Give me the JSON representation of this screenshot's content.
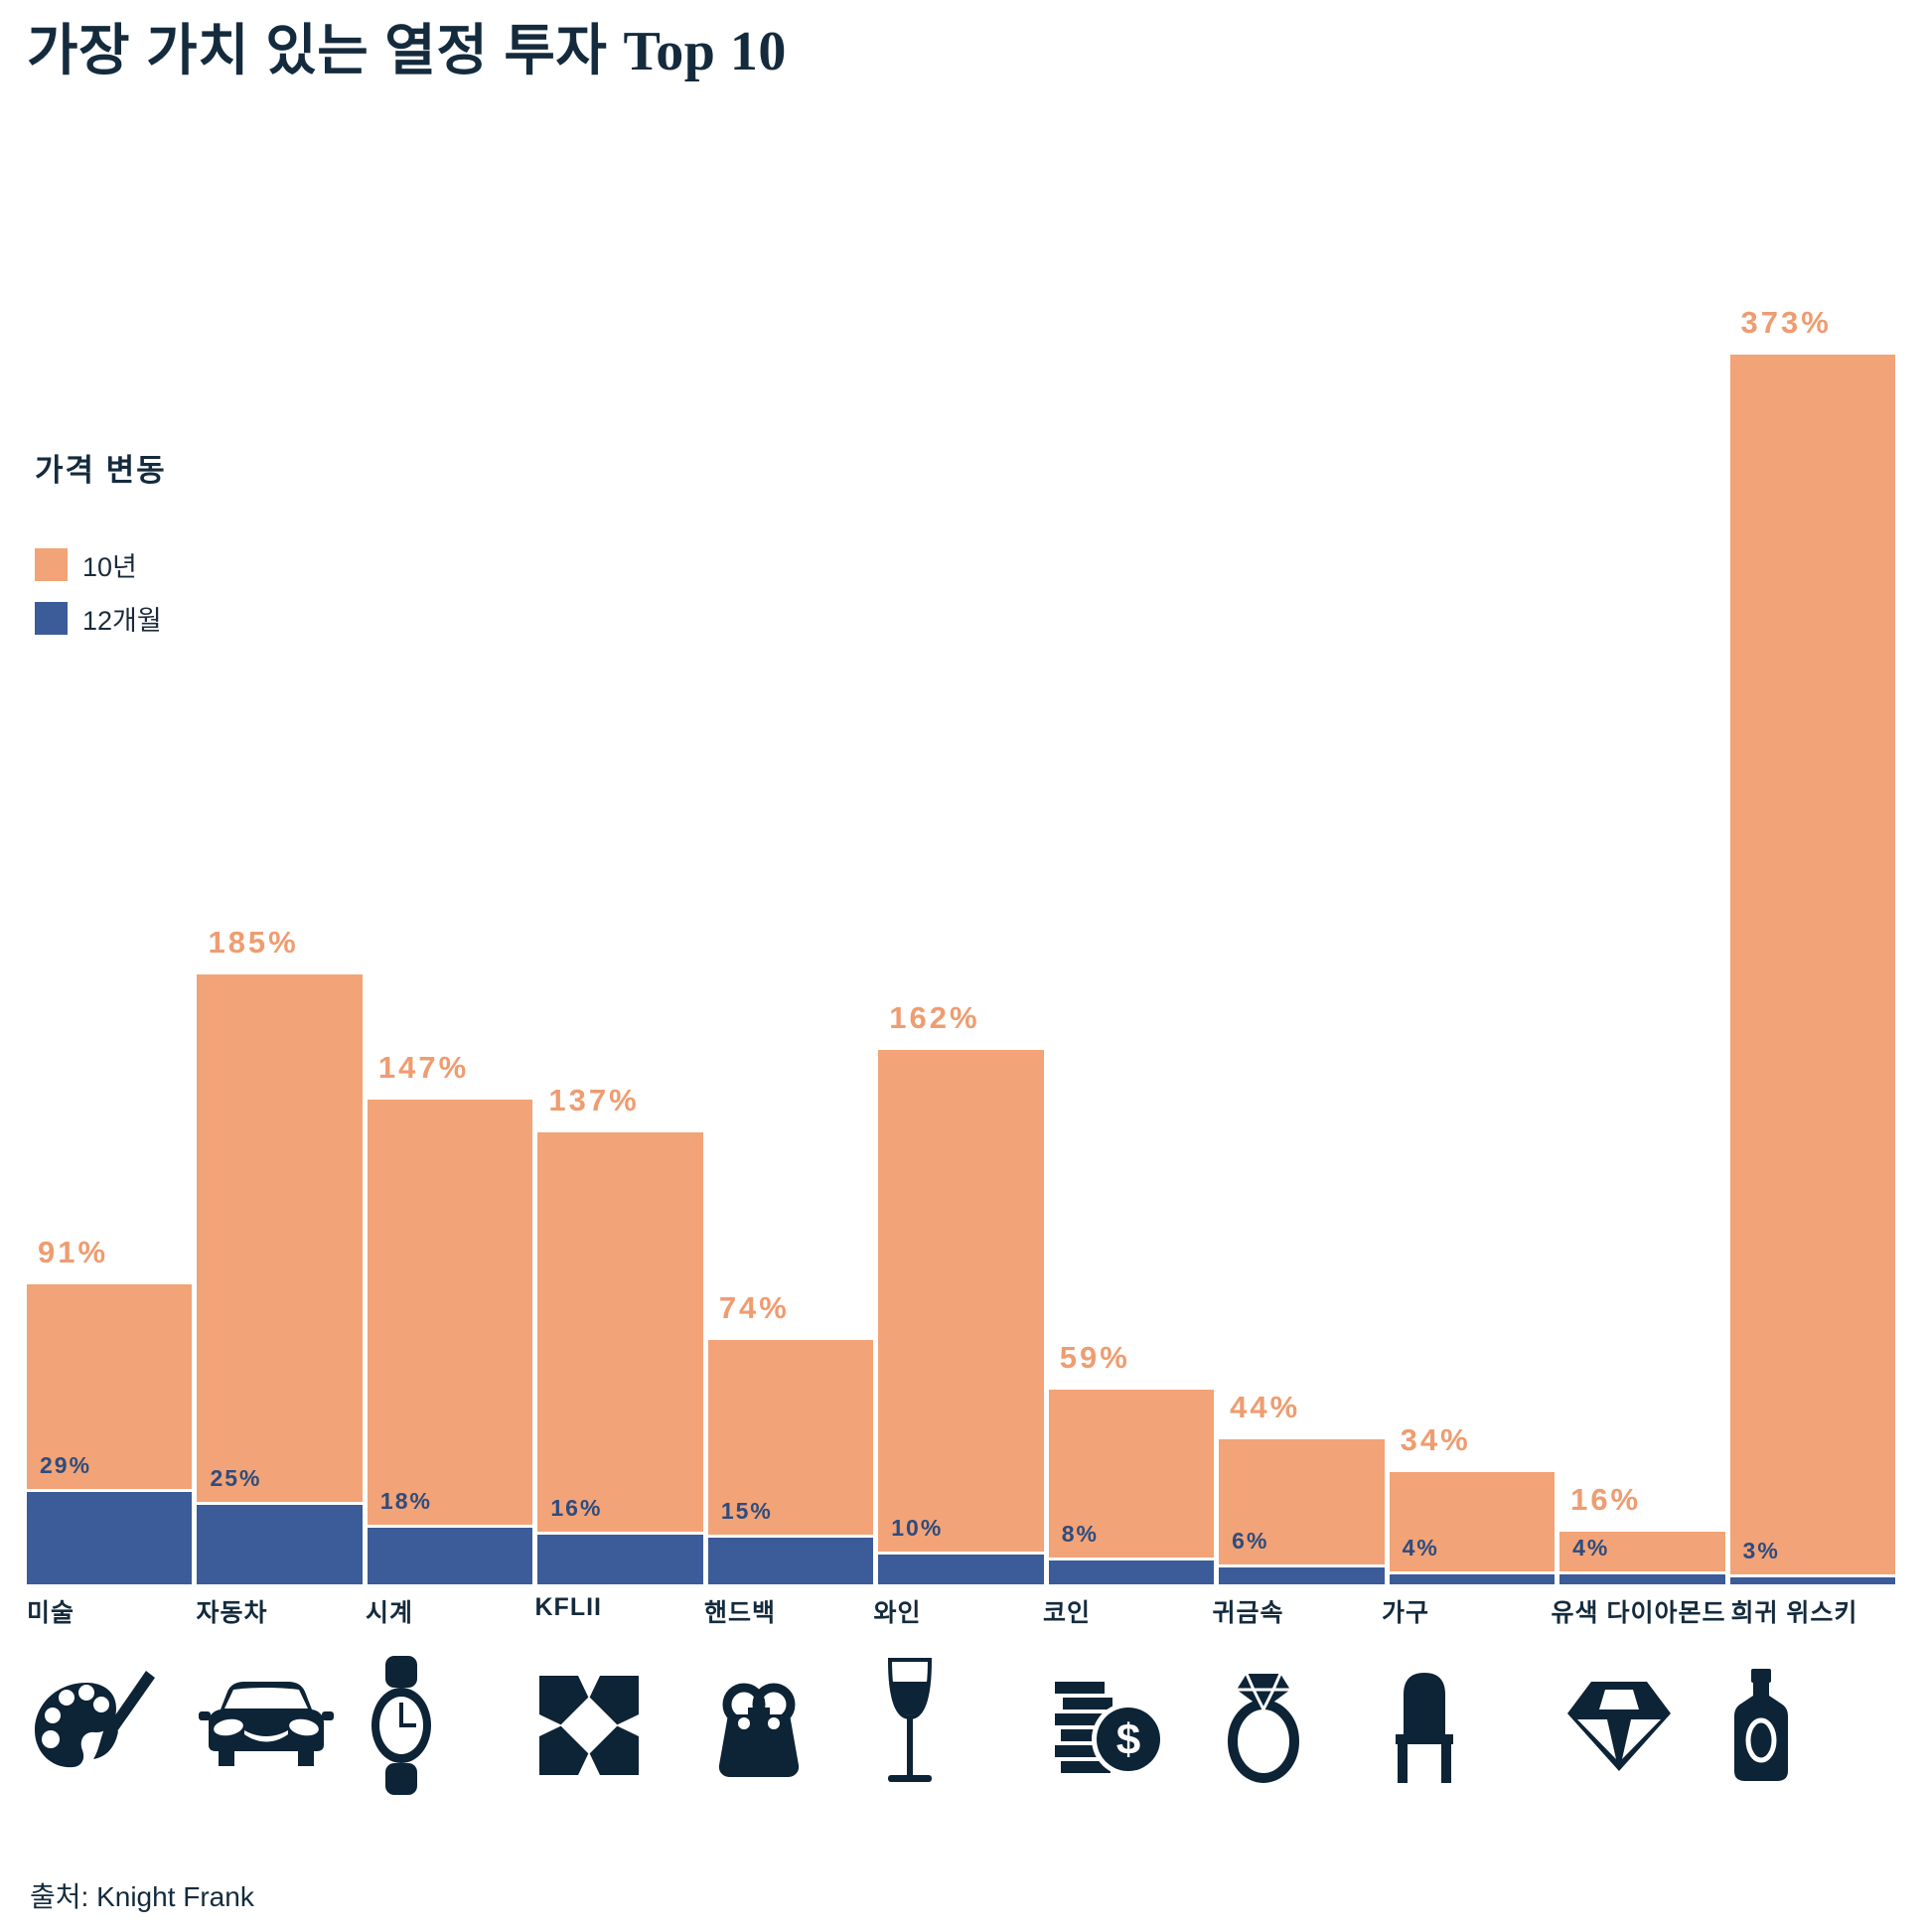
{
  "title": {
    "korean": "가장 가치 있는 열정 투자",
    "suffix": "Top 10"
  },
  "legend": {
    "heading": "가격 변동",
    "items": [
      {
        "label": "10년",
        "color": "#F2A377"
      },
      {
        "label": "12개월",
        "color": "#3B5B99"
      }
    ]
  },
  "source": "출처: Knight Frank",
  "colors": {
    "orange": "#F2A377",
    "blue": "#3B5B99",
    "navy": "#142B3D",
    "icon_navy": "#0D2336",
    "orange_label": "#EF9C70",
    "blue_label": "#2E4C7E"
  },
  "chart_data": {
    "type": "bar",
    "title": "가장 가치 있는 열정 투자 Top 10",
    "categories": [
      "미술",
      "자동차",
      "시계",
      "KFLII",
      "핸드백",
      "와인",
      "코인",
      "귀금속",
      "가구",
      "유색 다이아몬드",
      "희귀 위스키"
    ],
    "series": [
      {
        "name": "10년",
        "values": [
          91,
          185,
          147,
          137,
          74,
          162,
          59,
          44,
          34,
          16,
          373
        ]
      },
      {
        "name": "12개월",
        "values": [
          29,
          25,
          18,
          16,
          15,
          10,
          8,
          6,
          4,
          4,
          3
        ]
      }
    ],
    "icons": [
      "palette",
      "car",
      "watch",
      "kflii",
      "handbag",
      "wine",
      "coins",
      "ring",
      "chair",
      "diamond",
      "whisky"
    ],
    "value_suffix": "%",
    "ylim": [
      0,
      400
    ],
    "grid": false,
    "legend_position": "upper-left",
    "source": "Knight Frank"
  }
}
